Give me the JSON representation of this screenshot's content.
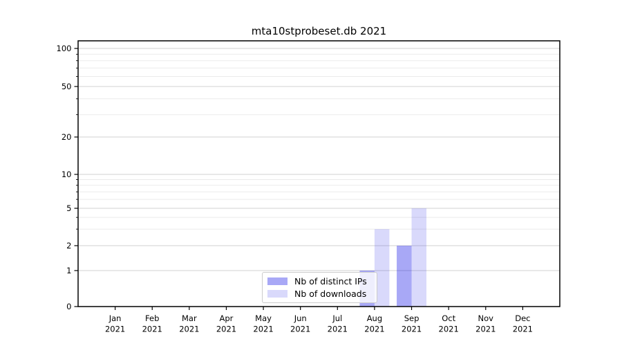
{
  "title": "mta10stprobeset.db 2021",
  "chart_data": {
    "type": "bar",
    "categories": [
      "Jan",
      "Feb",
      "Mar",
      "Apr",
      "May",
      "Jun",
      "Jul",
      "Aug",
      "Sep",
      "Oct",
      "Nov",
      "Dec"
    ],
    "year_label": "2021",
    "series": [
      {
        "name": "Nb of distinct IPs",
        "color": "rgba(0,0,230,0.34)",
        "values": [
          0,
          0,
          0,
          0,
          0,
          0,
          0,
          1,
          2,
          0,
          0,
          0
        ]
      },
      {
        "name": "Nb of downloads",
        "color": "rgba(0,0,230,0.15)",
        "values": [
          0,
          0,
          0,
          0,
          0,
          0,
          0,
          3,
          5,
          0,
          0,
          0
        ]
      }
    ],
    "yscale": "symlog",
    "ylim": [
      0,
      115
    ],
    "y_major_ticks": [
      0,
      1,
      2,
      5,
      10,
      20,
      50,
      100
    ],
    "y_minor_ticks": [
      3,
      4,
      6,
      7,
      8,
      9,
      30,
      40,
      60,
      70,
      80,
      90
    ],
    "grid": "horizontal major+minor",
    "legend_position": "lower center inside",
    "colors": {
      "grid_major": "#d2d2d2",
      "grid_minor": "#ebebeb",
      "spine": "#000000",
      "text": "#000000"
    }
  }
}
